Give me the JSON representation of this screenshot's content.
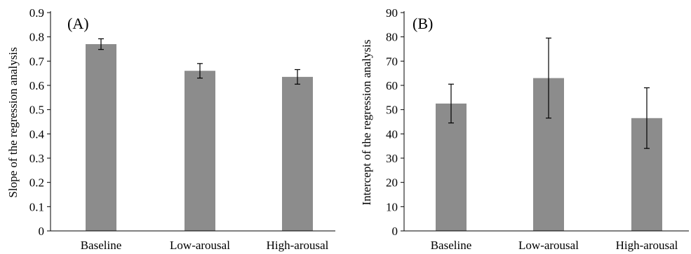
{
  "chart_data": [
    {
      "type": "bar",
      "panel_label": "(A)",
      "ylabel": "Slope of the regression analysis",
      "xlabel": "",
      "categories": [
        "Baseline",
        "Low-arousal",
        "High-arousal"
      ],
      "values": [
        0.77,
        0.66,
        0.635
      ],
      "errors": [
        0.022,
        0.03,
        0.03
      ],
      "ylim": [
        0,
        0.9
      ],
      "yticks": [
        "0",
        "0.1",
        "0.2",
        "0.3",
        "0.4",
        "0.5",
        "0.6",
        "0.7",
        "0.8",
        "0.9"
      ],
      "bar_color": "#8c8c8c",
      "grid": false,
      "legend": "none"
    },
    {
      "type": "bar",
      "panel_label": "(B)",
      "ylabel": "Intercept of the regression analysis",
      "xlabel": "",
      "categories": [
        "Baseline",
        "Low-arousal",
        "High-arousal"
      ],
      "values": [
        52.5,
        63,
        46.5
      ],
      "errors": [
        8,
        16.5,
        12.5
      ],
      "ylim": [
        0,
        90
      ],
      "yticks": [
        "0",
        "10",
        "20",
        "30",
        "40",
        "50",
        "60",
        "70",
        "80",
        "90"
      ],
      "bar_color": "#8c8c8c",
      "grid": false,
      "legend": "none"
    }
  ]
}
